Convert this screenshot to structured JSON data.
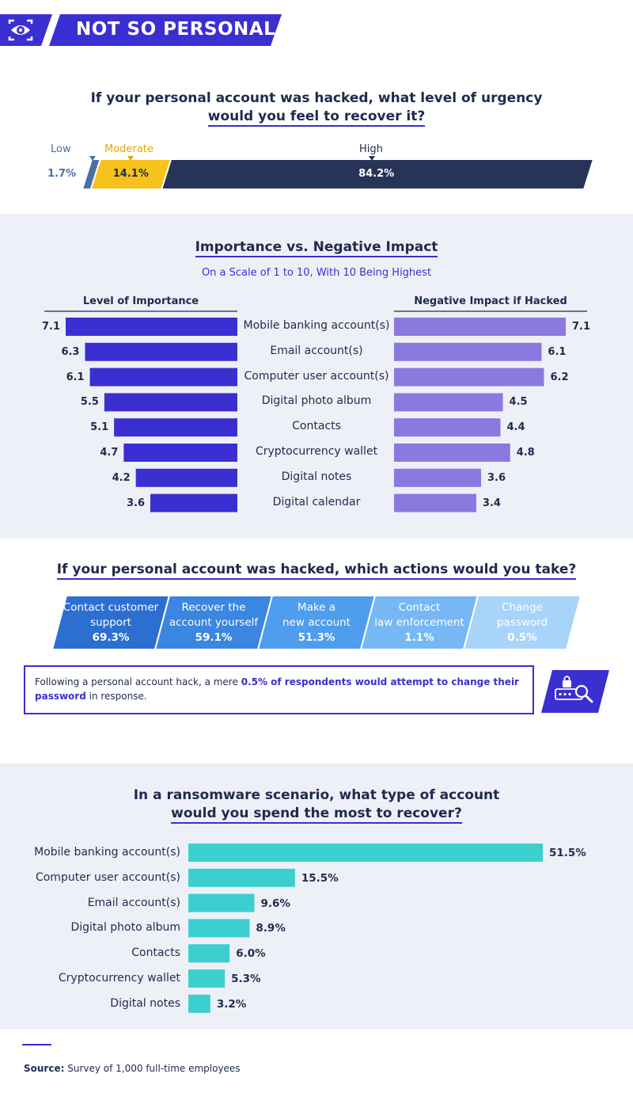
{
  "banner": {
    "title": "NOT SO PERSONAL",
    "icon": "eye-icon",
    "color": "#3a2fd1"
  },
  "colors": {
    "navy": "#263457",
    "blue": "#3a2fd1",
    "purple": "#8b79e0",
    "yellow": "#f7c21b",
    "steel": "#4a6fa5",
    "teal": "#3ccfcf",
    "panel": "#eef0f8"
  },
  "urgency": {
    "question_line1": "If your personal account was hacked, what level of urgency",
    "question_line2": "would you feel to recover it?"
  },
  "importance": {
    "title": "Importance vs. Negative Impact",
    "subtitle": "On a Scale of 1 to 10, With 10 Being Highest",
    "left_header": "Level of Importance",
    "right_header": "Negative Impact if Hacked"
  },
  "actions": {
    "title": "If your personal account was hacked, which actions would you take?",
    "note_before": "Following a personal account hack, a mere ",
    "note_highlight": "0.5% of respondents would attempt to change their password",
    "note_after": " in response.",
    "note_icon": "password-search-icon"
  },
  "ransom": {
    "title_line1": "In a ransomware scenario, what type of account",
    "title_line2": "would you spend the most to recover?"
  },
  "source": {
    "label": "Source:",
    "text": " Survey of 1,000 full-time employees"
  },
  "chart_data": [
    {
      "type": "bar",
      "orientation": "stacked-horizontal",
      "categories": [
        "Low",
        "Moderate",
        "High"
      ],
      "values": [
        1.7,
        14.1,
        84.2
      ],
      "value_labels": [
        "1.7%",
        "14.1%",
        "84.2%"
      ],
      "colors": [
        "#4a6fa5",
        "#f7c21b",
        "#263457"
      ],
      "title": "If your personal account was hacked, what level of urgency would you feel to recover it?"
    },
    {
      "type": "bar",
      "orientation": "butterfly",
      "title": "Importance vs. Negative Impact",
      "subtitle": "On a Scale of 1 to 10, With 10 Being Highest",
      "categories": [
        "Mobile banking account(s)",
        "Email account(s)",
        "Computer user account(s)",
        "Digital photo album",
        "Contacts",
        "Cryptocurrency wallet",
        "Digital notes",
        "Digital calendar"
      ],
      "series": [
        {
          "name": "Level of Importance",
          "values": [
            7.1,
            6.3,
            6.1,
            5.5,
            5.1,
            4.7,
            4.2,
            3.6
          ],
          "color": "#3a2fd1"
        },
        {
          "name": "Negative Impact if Hacked",
          "values": [
            7.1,
            6.1,
            6.2,
            4.5,
            4.4,
            4.8,
            3.6,
            3.4
          ],
          "color": "#8b79e0"
        }
      ]
    },
    {
      "type": "bar",
      "orientation": "parallelogram-row",
      "title": "If your personal account was hacked, which actions would you take?",
      "items": [
        {
          "line1": "Contact customer",
          "line2": "support",
          "value": 69.3,
          "value_label": "69.3%",
          "color": "#2c6fd1"
        },
        {
          "line1": "Recover the",
          "line2": "account yourself",
          "value": 59.1,
          "value_label": "59.1%",
          "color": "#3a86e0"
        },
        {
          "line1": "Make a",
          "line2": "new account",
          "value": 51.3,
          "value_label": "51.3%",
          "color": "#4f9ded"
        },
        {
          "line1": "Contact",
          "line2": "law enforcement",
          "value": 1.1,
          "value_label": "1.1%",
          "color": "#77b8f4"
        },
        {
          "line1": "Change",
          "line2": "password",
          "value": 0.5,
          "value_label": "0.5%",
          "color": "#a9d4fa"
        }
      ]
    },
    {
      "type": "bar",
      "orientation": "horizontal",
      "title": "In a ransomware scenario, what type of account would you spend the most to recover?",
      "categories": [
        "Mobile banking account(s)",
        "Computer user account(s)",
        "Email account(s)",
        "Digital photo album",
        "Contacts",
        "Cryptocurrency wallet",
        "Digital notes"
      ],
      "values": [
        51.5,
        15.5,
        9.6,
        8.9,
        6.0,
        5.3,
        3.2
      ],
      "value_labels": [
        "51.5%",
        "15.5%",
        "9.6%",
        "8.9%",
        "6.0%",
        "5.3%",
        "3.2%"
      ],
      "color": "#3ccfcf"
    }
  ]
}
